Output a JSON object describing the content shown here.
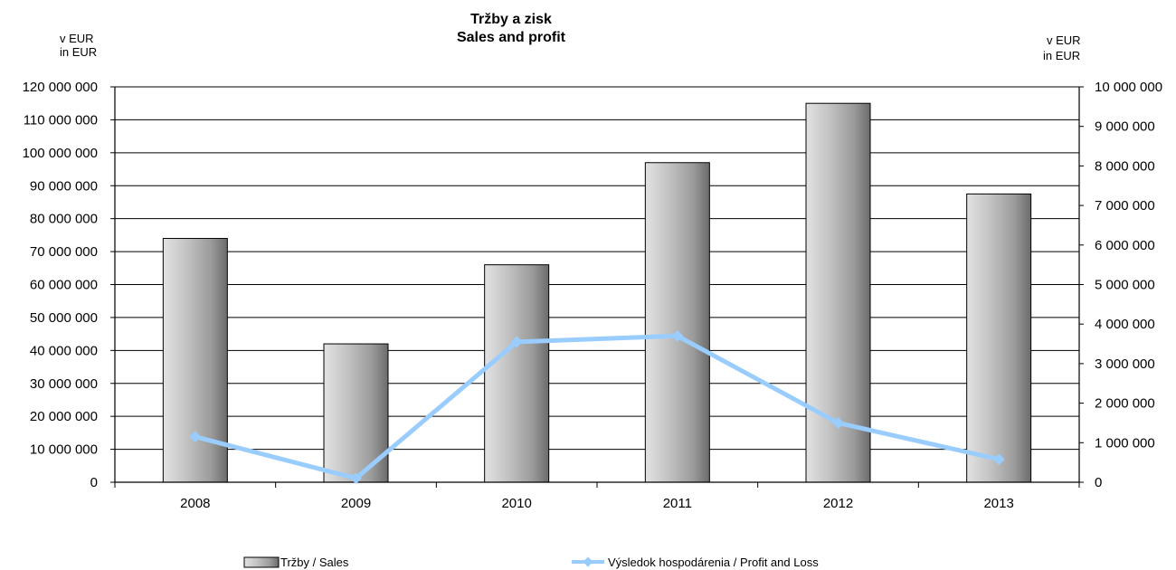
{
  "chart_data": {
    "type": "bar",
    "title": "Tržby a zisk",
    "subtitle": "Sales and profit",
    "left_unit": [
      "v EUR",
      "in EUR"
    ],
    "right_unit": [
      "v EUR",
      "in  EUR"
    ],
    "categories": [
      "2008",
      "2009",
      "2010",
      "2011",
      "2012",
      "2013"
    ],
    "ylim": [
      0,
      120000000
    ],
    "y2lim": [
      0,
      10000000
    ],
    "yticks": [
      "0",
      "10 000 000",
      "20 000 000",
      "30 000 000",
      "40 000 000",
      "50 000 000",
      "60 000 000",
      "70 000 000",
      "80 000 000",
      "90 000 000",
      "100 000 000",
      "110 000 000",
      "120 000 000"
    ],
    "y2ticks": [
      "0",
      "1 000 000",
      "2 000 000",
      "3 000 000",
      "4 000 000",
      "5 000 000",
      "6 000 000",
      "7 000 000",
      "8 000 000",
      "9 000 000",
      "10 000 000"
    ],
    "grid": true,
    "legend_position": "bottom",
    "series": [
      {
        "name": "Tržby / Sales",
        "type": "bar",
        "axis": "left",
        "values": [
          74000000,
          42000000,
          66000000,
          97000000,
          115000000,
          87500000
        ]
      },
      {
        "name": "Výsledok hospodárenia / Profit and Loss",
        "type": "line",
        "axis": "right",
        "color": "#99ccff",
        "values": [
          1150000,
          100000,
          3550000,
          3700000,
          1500000,
          580000
        ]
      }
    ]
  }
}
